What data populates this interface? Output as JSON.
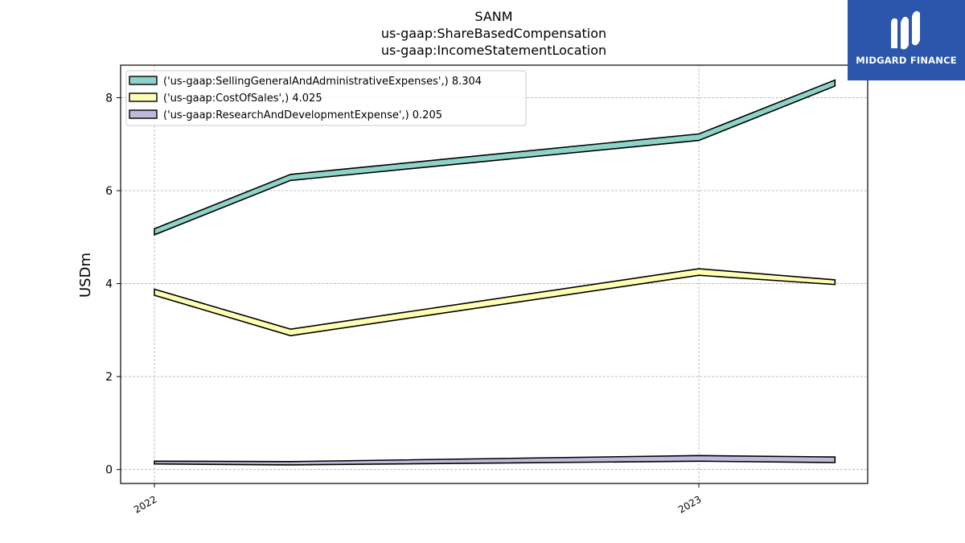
{
  "chart_data": {
    "type": "area",
    "title_lines": [
      "SANM",
      "us-gaap:ShareBasedCompensation",
      "us-gaap:IncomeStatementLocation"
    ],
    "xlabel": "",
    "ylabel": "USDm",
    "x": [
      "2022-01",
      "2022-04",
      "2023-01",
      "2023-04"
    ],
    "x_ticks": [
      {
        "x": "2022-01",
        "label": "2022"
      },
      {
        "x": "2023-01",
        "label": "2023"
      }
    ],
    "ylim": [
      -0.3,
      8.7
    ],
    "y_ticks": [
      0,
      2,
      4,
      6,
      8
    ],
    "grid": true,
    "legend_position": "upper-left",
    "series": [
      {
        "name": "('us-gaap:SellingGeneralAndAdministrativeExpenses',) 8.304",
        "color": "#8dd3c7",
        "lower": [
          5.05,
          6.22,
          7.08,
          8.25
        ],
        "upper": [
          5.18,
          6.35,
          7.22,
          8.38
        ]
      },
      {
        "name": "('us-gaap:CostOfSales',) 4.025",
        "color": "#ffffb3",
        "lower": [
          3.75,
          2.88,
          4.18,
          3.98
        ],
        "upper": [
          3.88,
          3.02,
          4.32,
          4.08
        ]
      },
      {
        "name": "('us-gaap:ResearchAndDevelopmentExpense',) 0.205",
        "color": "#bebada",
        "lower": [
          0.12,
          0.1,
          0.18,
          0.15
        ],
        "upper": [
          0.18,
          0.17,
          0.3,
          0.27
        ]
      }
    ]
  },
  "logo": {
    "text": "MIDGARD FINANCE",
    "color": "#2b56ac"
  }
}
